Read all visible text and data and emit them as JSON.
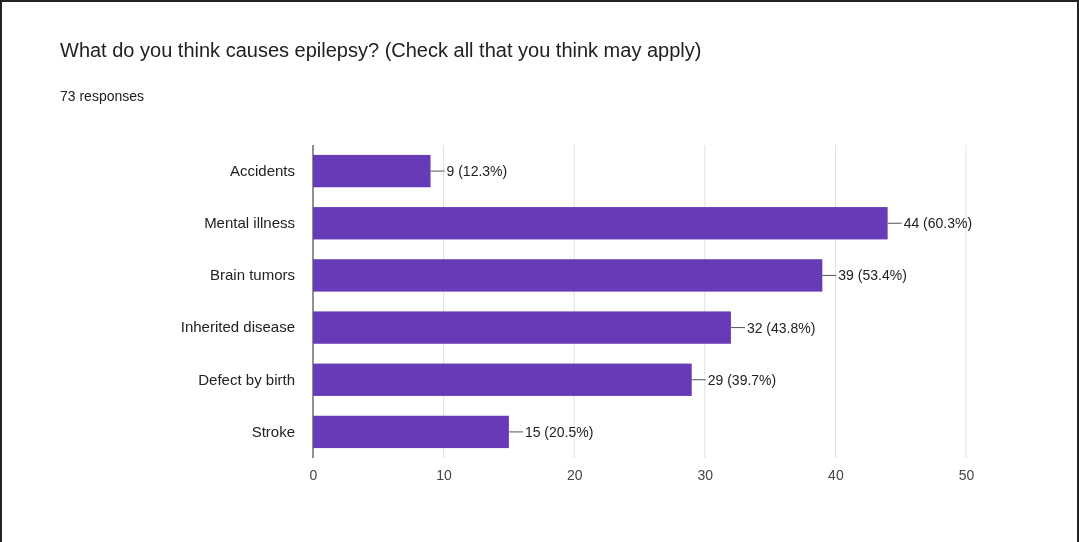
{
  "chart_data": {
    "type": "bar",
    "orientation": "horizontal",
    "title": "What do you think causes epilepsy? (Check all that you think may apply)",
    "subtitle": "73 responses",
    "categories": [
      "Accidents",
      "Mental illness",
      "Brain tumors",
      "Inherited disease",
      "Defect by birth",
      "Stroke"
    ],
    "values": [
      9,
      44,
      39,
      32,
      29,
      15
    ],
    "color": "#673ab7",
    "value_labels": [
      "9 (12.3%)",
      "44 (60.3%)",
      "39 (53.4%)",
      "32 (43.8%)",
      "29 (39.7%)",
      "15 (20.5%)"
    ],
    "xlim": [
      0,
      50
    ],
    "xticks": [
      0,
      10,
      20,
      30,
      40,
      50
    ],
    "grid": "x"
  }
}
